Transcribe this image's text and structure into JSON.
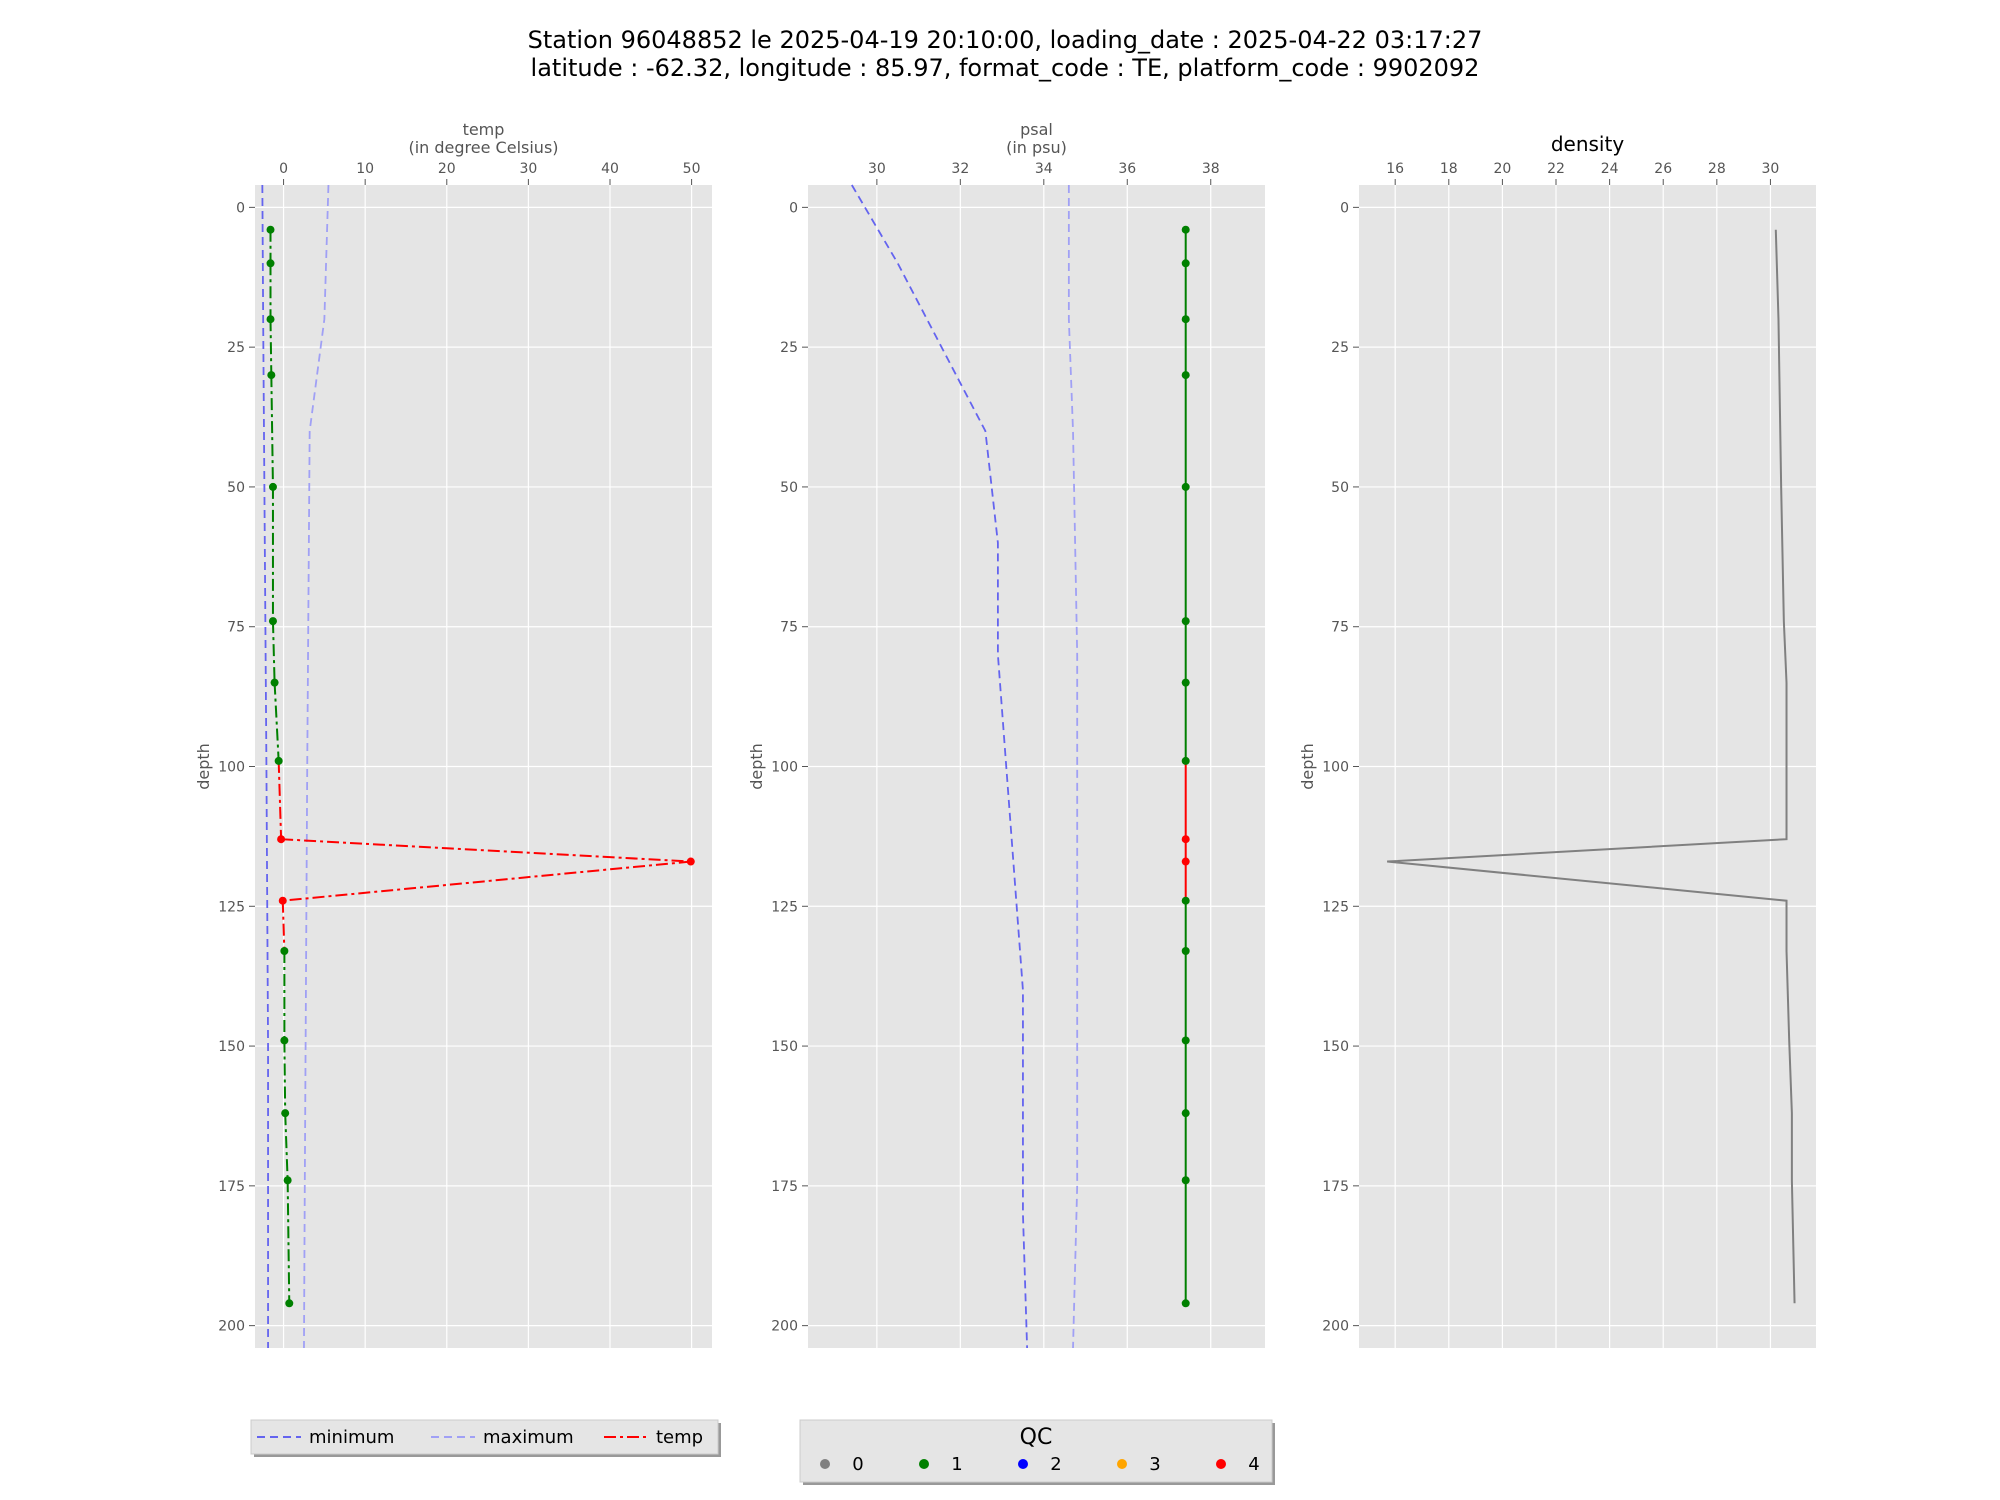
{
  "figure": {
    "title_line1": "Station 96048852 le 2025-04-19 20:10:00, loading_date : 2025-04-22 03:17:27",
    "title_line2": "latitude : -62.32, longitude : 85.97, format_code : TE, platform_code : 9902092"
  },
  "colors": {
    "panel_background": "#e5e5e5",
    "grid": "#ffffff",
    "minimum": "#6464ef",
    "maximum": "#a0a0f5",
    "qc_0": "#808080",
    "qc_1": "#008000",
    "qc_2": "#0000ff",
    "qc_3": "#ffa500",
    "qc_4": "#ff0000",
    "density_line": "#808080"
  },
  "chart_data": [
    {
      "type": "line",
      "xlabel_line1": "temp",
      "xlabel_line2": "(in degree Celsius)",
      "ylabel": "depth",
      "xlim": [
        -3.5,
        52.5
      ],
      "ylim": [
        204,
        -4
      ],
      "y_inverted": true,
      "x_ticks": [
        0,
        10,
        20,
        30,
        40,
        50
      ],
      "y_ticks": [
        0,
        25,
        50,
        75,
        100,
        125,
        150,
        175,
        200
      ],
      "grid": true,
      "series": [
        {
          "name": "minimum",
          "style": "dashed",
          "x": [
            -2.6,
            -2.5,
            -2.4,
            -2.3,
            -2.2,
            -2.1,
            -2.0,
            -1.9,
            -1.9,
            -1.9
          ],
          "y": [
            -4,
            20,
            40,
            60,
            80,
            100,
            125,
            150,
            175,
            204
          ]
        },
        {
          "name": "maximum",
          "style": "dashed",
          "x": [
            5.5,
            5.0,
            3.2,
            3.1,
            3.0,
            2.9,
            2.8,
            2.7,
            2.6,
            2.5
          ],
          "y": [
            -4,
            20,
            40,
            60,
            80,
            100,
            125,
            150,
            175,
            204
          ]
        },
        {
          "name": "temp",
          "style": "dashdot",
          "markers": true,
          "x": [
            -1.6,
            -1.6,
            -1.6,
            -1.5,
            -1.3,
            -1.3,
            -1.1,
            -0.6,
            -0.3,
            49.9,
            -0.1,
            0.1,
            0.1,
            0.2,
            0.5,
            0.7
          ],
          "y": [
            4,
            10,
            20,
            30,
            50,
            74,
            85,
            99,
            113,
            117,
            124,
            133,
            149,
            162,
            174,
            196
          ],
          "qc": [
            1,
            1,
            1,
            1,
            1,
            1,
            1,
            1,
            4,
            4,
            4,
            1,
            1,
            1,
            1,
            1
          ]
        }
      ]
    },
    {
      "type": "line",
      "xlabel_line1": "psal",
      "xlabel_line2": "(in psu)",
      "ylabel": "depth",
      "xlim": [
        28.35,
        39.3
      ],
      "ylim": [
        204,
        -4
      ],
      "y_inverted": true,
      "x_ticks": [
        30,
        32,
        34,
        36,
        38
      ],
      "y_ticks": [
        0,
        25,
        50,
        75,
        100,
        125,
        150,
        175,
        200
      ],
      "grid": true,
      "series": [
        {
          "name": "minimum",
          "style": "dashed",
          "x": [
            29.4,
            30.5,
            31.9,
            32.6,
            32.9,
            32.9,
            33.2,
            33.5,
            33.5,
            33.6
          ],
          "y": [
            -4,
            10,
            30,
            40,
            60,
            80,
            110,
            140,
            180,
            204
          ]
        },
        {
          "name": "maximum",
          "style": "dashed",
          "x": [
            34.6,
            34.6,
            34.7,
            34.75,
            34.8,
            34.8,
            34.8,
            34.8,
            34.8,
            34.7
          ],
          "y": [
            -4,
            20,
            40,
            60,
            80,
            100,
            125,
            150,
            175,
            204
          ]
        },
        {
          "name": "psal",
          "style": "solid",
          "markers": true,
          "x": [
            37.4,
            37.4,
            37.4,
            37.4,
            37.4,
            37.4,
            37.4,
            37.4,
            37.4,
            37.4,
            37.4,
            37.4,
            37.4,
            37.4,
            37.4,
            37.4
          ],
          "y": [
            4,
            10,
            20,
            30,
            50,
            74,
            85,
            99,
            113,
            117,
            124,
            133,
            149,
            162,
            174,
            196
          ],
          "qc": [
            1,
            1,
            1,
            1,
            1,
            1,
            1,
            1,
            4,
            4,
            1,
            1,
            1,
            1,
            1,
            1
          ]
        }
      ]
    },
    {
      "type": "line",
      "title": "density",
      "ylabel": "depth",
      "xlim": [
        14.65,
        31.7
      ],
      "ylim": [
        204,
        -4
      ],
      "y_inverted": true,
      "x_ticks": [
        16,
        18,
        20,
        22,
        24,
        26,
        28,
        30
      ],
      "y_ticks": [
        0,
        25,
        50,
        75,
        100,
        125,
        150,
        175,
        200
      ],
      "grid": true,
      "series": [
        {
          "name": "density",
          "style": "solid",
          "x": [
            30.2,
            30.3,
            30.4,
            30.5,
            30.6,
            30.6,
            30.6,
            15.7,
            30.6,
            30.6,
            30.7,
            30.8,
            30.8,
            30.9
          ],
          "y": [
            4,
            20,
            50,
            74,
            85,
            99,
            113,
            117,
            124,
            133,
            149,
            162,
            174,
            196
          ]
        }
      ]
    }
  ],
  "legend_lines": {
    "items": [
      {
        "label": "minimum",
        "style": "dashed",
        "color_key": "minimum"
      },
      {
        "label": "maximum",
        "style": "dashed",
        "color_key": "maximum"
      },
      {
        "label": "temp",
        "style": "dashdot",
        "color_key": "qc_4"
      }
    ]
  },
  "legend_qc": {
    "title": "QC",
    "items": [
      {
        "label": "0",
        "color_key": "qc_0"
      },
      {
        "label": "1",
        "color_key": "qc_1"
      },
      {
        "label": "2",
        "color_key": "qc_2"
      },
      {
        "label": "3",
        "color_key": "qc_3"
      },
      {
        "label": "4",
        "color_key": "qc_4"
      }
    ]
  }
}
